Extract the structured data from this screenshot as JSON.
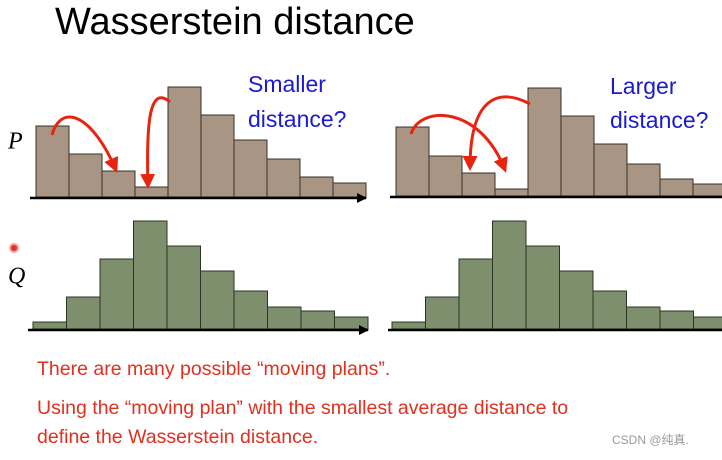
{
  "title": "Wasserstein distance",
  "labels": {
    "P": "P",
    "Q": "Q"
  },
  "panels": [
    {
      "question": [
        "Smaller",
        "distance?"
      ],
      "P": [
        71,
        43,
        26,
        10,
        110,
        82,
        57,
        38,
        20,
        14
      ],
      "Q": [
        7,
        32,
        70,
        108,
        83,
        58,
        38,
        22,
        18,
        12
      ]
    },
    {
      "question": [
        "Larger",
        "distance?"
      ],
      "P": [
        69,
        40,
        23,
        7,
        108,
        80,
        52,
        32,
        17,
        12
      ],
      "Q": [
        7,
        32,
        70,
        108,
        83,
        58,
        38,
        22,
        18,
        12
      ]
    }
  ],
  "notes": [
    "There are many possible “moving plans”.",
    "Using the “moving plan” with the smallest average distance to",
    "define the Wasserstein distance."
  ],
  "watermark": "CSDN @纯真."
}
